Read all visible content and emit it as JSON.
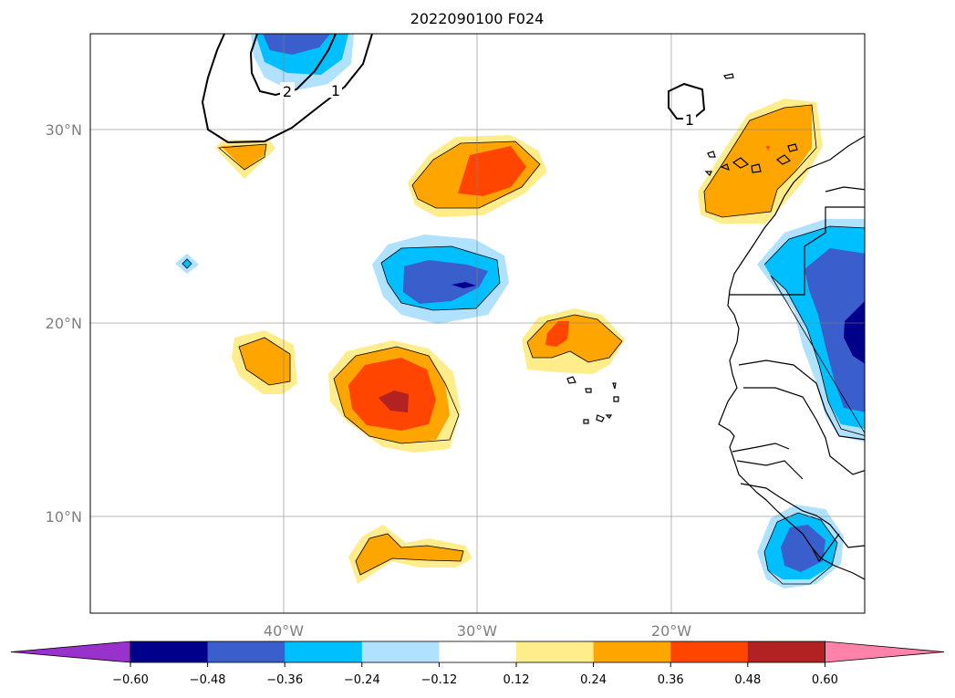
{
  "title": "2022090100 F024",
  "map": {
    "lon_range": [
      -50,
      -10
    ],
    "lat_range": [
      5,
      35
    ],
    "grid": true,
    "lat_labels": [
      {
        "lat": 30,
        "text": "30°N"
      },
      {
        "lat": 20,
        "text": "20°N"
      },
      {
        "lat": 10,
        "text": "10°N"
      }
    ],
    "lon_labels": [
      {
        "lon": -40,
        "text": "40°W"
      },
      {
        "lon": -30,
        "text": "30°W"
      },
      {
        "lon": -20,
        "text": "20°W"
      }
    ],
    "contour_labels": [
      {
        "text": "2",
        "lon": -40.2,
        "lat": 32.0
      },
      {
        "text": "1",
        "lon": -37.3,
        "lat": 32.0
      },
      {
        "text": "1",
        "lon": -19.0,
        "lat": 30.5
      }
    ]
  },
  "colorbar": {
    "levels": [
      "−0.60",
      "−0.48",
      "−0.36",
      "−0.24",
      "−0.12",
      "0.12",
      "0.24",
      "0.36",
      "0.48",
      "0.60"
    ],
    "colors": [
      "#9932cc",
      "#00008b",
      "#3a5fcd",
      "#00bfff",
      "#b0e2ff",
      "#ffffff",
      "#ffec8b",
      "#ffa500",
      "#ff4500",
      "#b22222",
      "#ff82ab"
    ]
  },
  "chart_data": {
    "type": "filled-contour map",
    "title": "2022090100 F024",
    "extent": {
      "lon": [
        -50,
        -10
      ],
      "lat": [
        5,
        35
      ]
    },
    "colorbar_levels": [
      -0.6,
      -0.48,
      -0.36,
      -0.24,
      -0.12,
      0.12,
      0.24,
      0.36,
      0.48,
      0.6
    ],
    "anomaly_features": [
      {
        "sign": "positive",
        "center_lon": -42.2,
        "center_lat": 29.0,
        "max_level": 0.36
      },
      {
        "sign": "positive",
        "center_lon": -30.0,
        "center_lat": 27.6,
        "max_level": 0.48
      },
      {
        "sign": "negative",
        "center_lon": -31.0,
        "center_lat": 22.0,
        "min_level": -0.6
      },
      {
        "sign": "negative",
        "center_lon": -45.2,
        "center_lat": 22.9,
        "min_level": -0.24
      },
      {
        "sign": "positive",
        "center_lon": -41.0,
        "center_lat": 17.8,
        "max_level": 0.36
      },
      {
        "sign": "positive",
        "center_lon": -34.5,
        "center_lat": 16.2,
        "max_level": 0.6
      },
      {
        "sign": "positive",
        "center_lon": -24.8,
        "center_lat": 19.0,
        "max_level": 0.48
      },
      {
        "sign": "positive",
        "center_lon": -34.0,
        "center_lat": 7.9,
        "max_level": 0.36
      },
      {
        "sign": "positive",
        "center_lon": -14.5,
        "center_lat": 28.0,
        "max_level": 0.36
      },
      {
        "sign": "negative",
        "center_lon": -11.0,
        "center_lat": 20.0,
        "min_level": -0.6
      },
      {
        "sign": "negative",
        "center_lon": -13.2,
        "center_lat": 8.3,
        "min_level": -0.48
      },
      {
        "sign": "negative",
        "center_lon": -38.5,
        "center_lat": 34.5,
        "min_level": -0.48
      }
    ],
    "line_contours": [
      1,
      2
    ]
  }
}
